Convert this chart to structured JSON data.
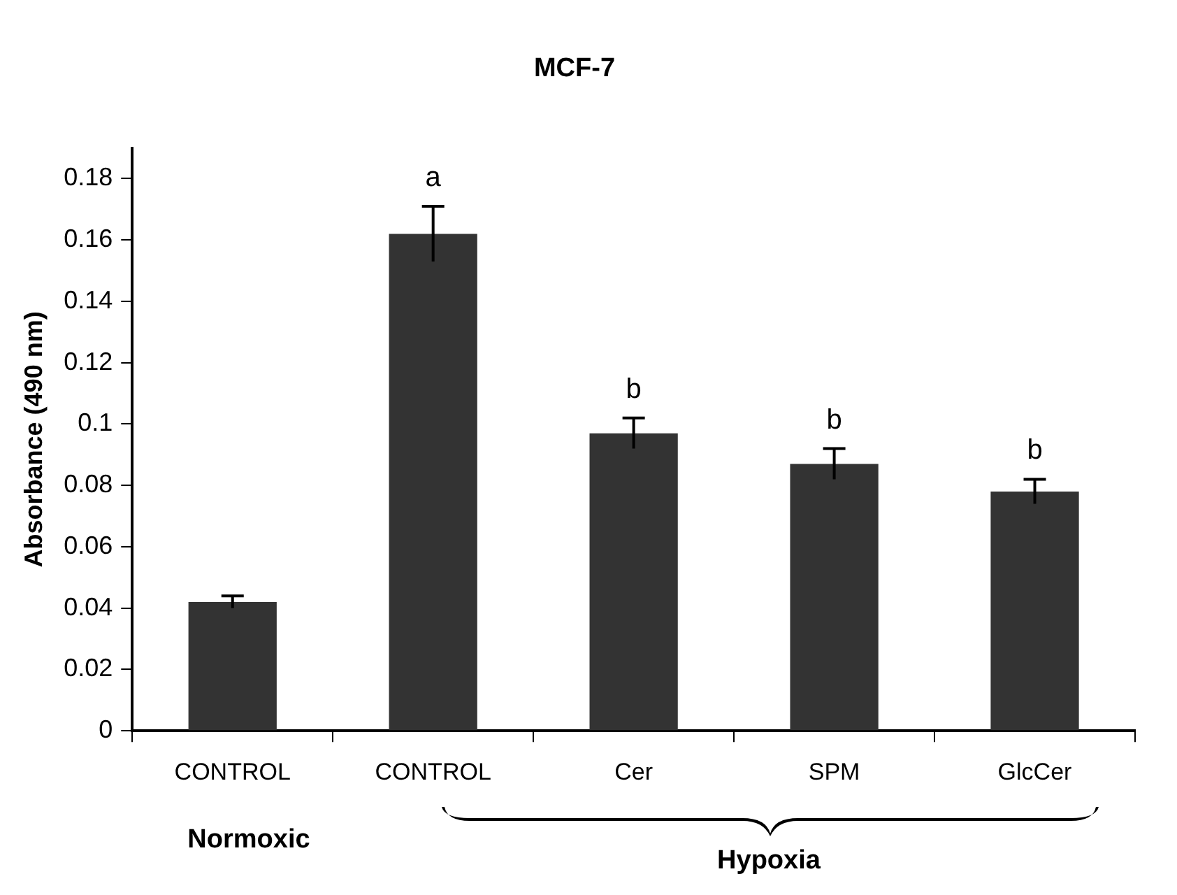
{
  "chart_data": {
    "type": "bar",
    "title": "MCF-7",
    "ylabel": "Absorbance (490 nm)",
    "categories": [
      "CONTROL",
      "CONTROL",
      "Cer",
      "SPM",
      "GlcCer"
    ],
    "values": [
      0.042,
      0.162,
      0.097,
      0.087,
      0.078
    ],
    "errors": [
      0.002,
      0.009,
      0.005,
      0.005,
      0.004
    ],
    "color": "#333333",
    "ylim": [
      0,
      0.19
    ],
    "yticks": [
      0,
      0.02,
      0.04,
      0.06,
      0.08,
      0.1,
      0.12,
      0.14,
      0.16,
      0.18
    ],
    "grid": false,
    "legend": false,
    "annotations": [
      "a",
      {
        "text": "b",
        "x": "Cer",
        "y": 0.097
      },
      {
        "text": "b",
        "x": "SPM",
        "y": 0.087
      },
      {
        "text": "b",
        "x": "GlcCer",
        "y": 0.078
      },
      "Normoxic",
      "Hypoxia"
    ]
  }
}
